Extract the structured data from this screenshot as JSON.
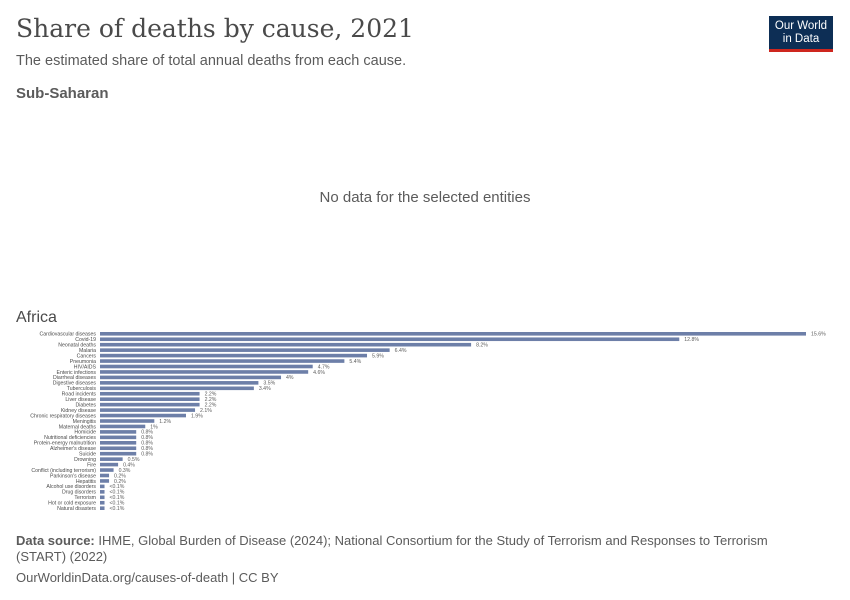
{
  "header": {
    "title": "Share of deaths by cause, 2021",
    "subtitle": "The estimated share of total annual deaths from each cause."
  },
  "logo": {
    "line1": "Our World",
    "line2": "in Data"
  },
  "panels": [
    {
      "title": "Sub-Saharan",
      "message": "No data for the selected entities"
    },
    {
      "title": "Africa"
    }
  ],
  "colors": {
    "bar": "#6d7fa8",
    "logo_bg": "#0d2e55",
    "logo_accent": "#ce261e"
  },
  "chart_data": {
    "type": "bar",
    "orientation": "horizontal",
    "categories": [
      "Cardiovascular diseases",
      "Covid-19",
      "Neonatal deaths",
      "Malaria",
      "Cancers",
      "Pneumonia",
      "HIV/AIDS",
      "Enteric infections",
      "Diarrheal diseases",
      "Digestive diseases",
      "Tuberculosis",
      "Road incidents",
      "Liver disease",
      "Diabetes",
      "Kidney disease",
      "Chronic respiratory diseases",
      "Meningitis",
      "Maternal deaths",
      "Homicide",
      "Nutritional deficiencies",
      "Protein-energy malnutrition",
      "Alzheimer's disease",
      "Suicide",
      "Drowning",
      "Fire",
      "Conflict (including terrorism)",
      "Parkinson's disease",
      "Hepatitis",
      "Alcohol use disorders",
      "Drug disorders",
      "Terrorism",
      "Hot or cold exposure",
      "Natural disasters"
    ],
    "values": [
      15.6,
      12.8,
      8.2,
      6.4,
      5.9,
      5.4,
      4.7,
      4.6,
      4,
      3.5,
      3.4,
      2.2,
      2.2,
      2.2,
      2.1,
      1.9,
      1.2,
      1,
      0.8,
      0.8,
      0.8,
      0.8,
      0.8,
      0.5,
      0.4,
      0.3,
      0.2,
      0.2,
      0.1,
      0.1,
      0.1,
      0.1,
      0.1
    ],
    "value_labels": [
      "15.6%",
      "12.8%",
      "8.2%",
      "6.4%",
      "5.9%",
      "5.4%",
      "4.7%",
      "4.6%",
      "4%",
      "3.5%",
      "3.4%",
      "2.2%",
      "2.2%",
      "2.2%",
      "2.1%",
      "1.9%",
      "1.2%",
      "1%",
      "0.8%",
      "0.8%",
      "0.8%",
      "0.8%",
      "0.8%",
      "0.5%",
      "0.4%",
      "0.3%",
      "0.2%",
      "0.2%",
      "<0.1%",
      "<0.1%",
      "<0.1%",
      "<0.1%",
      "<0.1%"
    ],
    "xlim": [
      0,
      15.6
    ],
    "grid": false,
    "legend": "none"
  },
  "footer": {
    "source_label": "Data source:",
    "source_text": "IHME, Global Burden of Disease (2024); National Consortium for the Study of Terrorism and Responses to Terrorism (START) (2022)",
    "url": "OurWorldinData.org/causes-of-death | CC BY"
  }
}
